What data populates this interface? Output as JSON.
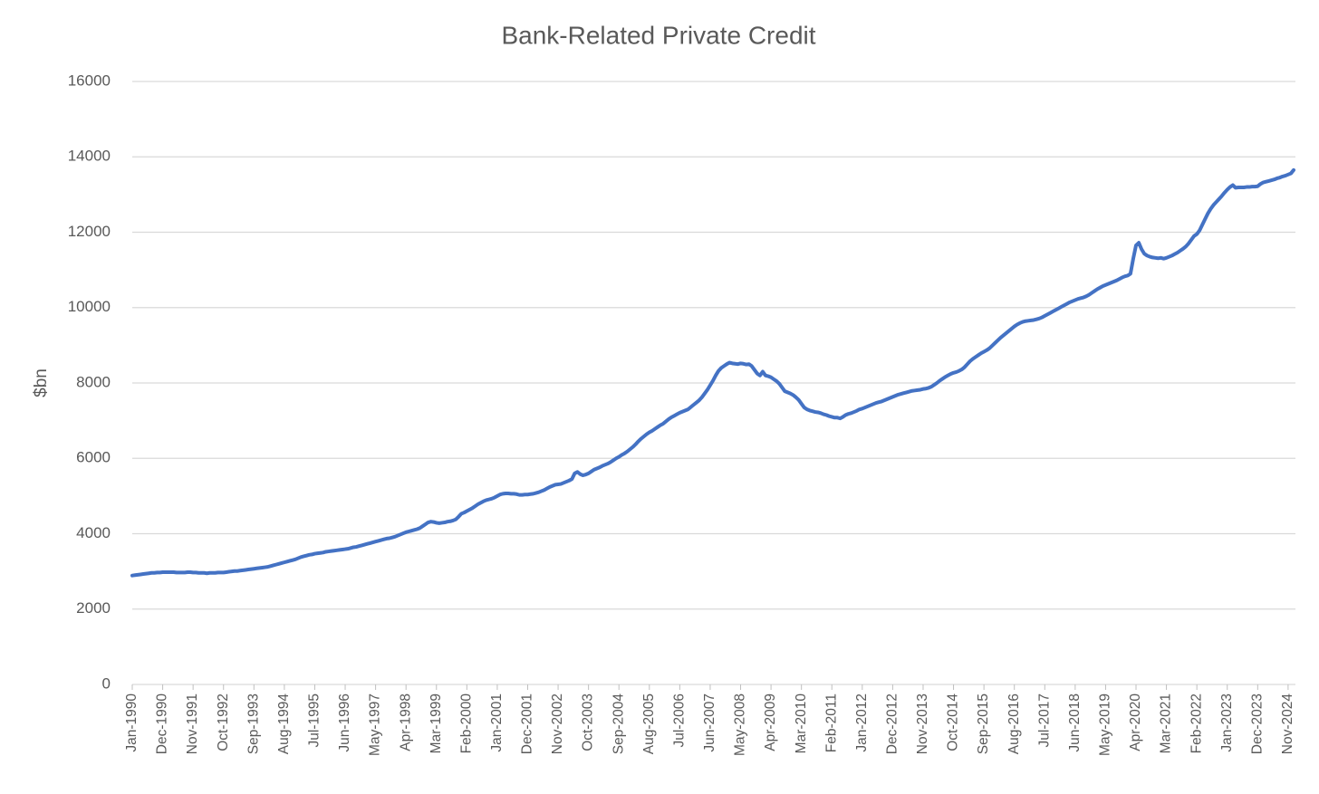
{
  "chart_data": {
    "type": "line",
    "title": "Bank-Related Private Credit",
    "y_label": "$bn",
    "categories": [
      "Jan-1990",
      null,
      null,
      null,
      null,
      null,
      null,
      null,
      null,
      null,
      null,
      "Dec-1990",
      null,
      null,
      null,
      null,
      null,
      null,
      null,
      null,
      null,
      null,
      "Nov-1991",
      null,
      null,
      null,
      null,
      null,
      null,
      null,
      null,
      null,
      null,
      "Oct-1992",
      null,
      null,
      null,
      null,
      null,
      null,
      null,
      null,
      null,
      null,
      "Sep-1993",
      null,
      null,
      null,
      null,
      null,
      null,
      null,
      null,
      null,
      null,
      "Aug-1994",
      null,
      null,
      null,
      null,
      null,
      null,
      null,
      null,
      null,
      null,
      "Jul-1995",
      null,
      null,
      null,
      null,
      null,
      null,
      null,
      null,
      null,
      null,
      "Jun-1996",
      null,
      null,
      null,
      null,
      null,
      null,
      null,
      null,
      null,
      null,
      "May-1997",
      null,
      null,
      null,
      null,
      null,
      null,
      null,
      null,
      null,
      null,
      "Apr-1998",
      null,
      null,
      null,
      null,
      null,
      null,
      null,
      null,
      null,
      null,
      "Mar-1999",
      null,
      null,
      null,
      null,
      null,
      null,
      null,
      null,
      null,
      null,
      "Feb-2000",
      null,
      null,
      null,
      null,
      null,
      null,
      null,
      null,
      null,
      null,
      "Jan-2001",
      null,
      null,
      null,
      null,
      null,
      null,
      null,
      null,
      null,
      null,
      "Dec-2001",
      null,
      null,
      null,
      null,
      null,
      null,
      null,
      null,
      null,
      null,
      "Nov-2002",
      null,
      null,
      null,
      null,
      null,
      null,
      null,
      null,
      null,
      null,
      "Oct-2003",
      null,
      null,
      null,
      null,
      null,
      null,
      null,
      null,
      null,
      null,
      "Sep-2004",
      null,
      null,
      null,
      null,
      null,
      null,
      null,
      null,
      null,
      null,
      "Aug-2005",
      null,
      null,
      null,
      null,
      null,
      null,
      null,
      null,
      null,
      null,
      "Jul-2006",
      null,
      null,
      null,
      null,
      null,
      null,
      null,
      null,
      null,
      null,
      "Jun-2007",
      null,
      null,
      null,
      null,
      null,
      null,
      null,
      null,
      null,
      null,
      "May-2008",
      null,
      null,
      null,
      null,
      null,
      null,
      null,
      null,
      null,
      null,
      "Apr-2009",
      null,
      null,
      null,
      null,
      null,
      null,
      null,
      null,
      null,
      null,
      "Mar-2010",
      null,
      null,
      null,
      null,
      null,
      null,
      null,
      null,
      null,
      null,
      "Feb-2011",
      null,
      null,
      null,
      null,
      null,
      null,
      null,
      null,
      null,
      null,
      "Jan-2012",
      null,
      null,
      null,
      null,
      null,
      null,
      null,
      null,
      null,
      null,
      "Dec-2012",
      null,
      null,
      null,
      null,
      null,
      null,
      null,
      null,
      null,
      null,
      "Nov-2013",
      null,
      null,
      null,
      null,
      null,
      null,
      null,
      null,
      null,
      null,
      "Oct-2014",
      null,
      null,
      null,
      null,
      null,
      null,
      null,
      null,
      null,
      null,
      "Sep-2015",
      null,
      null,
      null,
      null,
      null,
      null,
      null,
      null,
      null,
      null,
      "Aug-2016",
      null,
      null,
      null,
      null,
      null,
      null,
      null,
      null,
      null,
      null,
      "Jul-2017",
      null,
      null,
      null,
      null,
      null,
      null,
      null,
      null,
      null,
      null,
      "Jun-2018",
      null,
      null,
      null,
      null,
      null,
      null,
      null,
      null,
      null,
      null,
      "May-2019",
      null,
      null,
      null,
      null,
      null,
      null,
      null,
      null,
      null,
      null,
      "Apr-2020",
      null,
      null,
      null,
      null,
      null,
      null,
      null,
      null,
      null,
      null,
      "Mar-2021",
      null,
      null,
      null,
      null,
      null,
      null,
      null,
      null,
      null,
      null,
      "Feb-2022",
      null,
      null,
      null,
      null,
      null,
      null,
      null,
      null,
      null,
      null,
      "Jan-2023",
      null,
      null,
      null,
      null,
      null,
      null,
      null,
      null,
      null,
      null,
      "Dec-2023",
      null,
      null,
      null,
      null,
      null,
      null,
      null,
      null,
      null,
      null,
      "Nov-2024",
      null,
      null
    ],
    "series": [
      {
        "name": "Bank-Related Private Credit",
        "color": "#4472c4",
        "values": [
          2890,
          2900,
          2910,
          2920,
          2930,
          2940,
          2950,
          2960,
          2960,
          2970,
          2970,
          2980,
          2980,
          2980,
          2980,
          2980,
          2970,
          2970,
          2970,
          2970,
          2980,
          2980,
          2970,
          2970,
          2960,
          2960,
          2960,
          2950,
          2960,
          2960,
          2960,
          2970,
          2970,
          2970,
          2980,
          2990,
          3000,
          3010,
          3010,
          3020,
          3030,
          3040,
          3050,
          3060,
          3070,
          3080,
          3090,
          3100,
          3110,
          3120,
          3140,
          3160,
          3180,
          3200,
          3220,
          3240,
          3260,
          3280,
          3300,
          3320,
          3350,
          3380,
          3400,
          3420,
          3440,
          3450,
          3470,
          3480,
          3490,
          3500,
          3520,
          3530,
          3540,
          3550,
          3560,
          3570,
          3580,
          3590,
          3600,
          3620,
          3640,
          3650,
          3670,
          3690,
          3710,
          3730,
          3750,
          3770,
          3790,
          3810,
          3830,
          3850,
          3870,
          3880,
          3900,
          3920,
          3950,
          3980,
          4010,
          4040,
          4060,
          4080,
          4100,
          4120,
          4150,
          4200,
          4250,
          4300,
          4320,
          4310,
          4290,
          4280,
          4290,
          4300,
          4320,
          4330,
          4350,
          4380,
          4450,
          4530,
          4560,
          4600,
          4640,
          4680,
          4730,
          4780,
          4820,
          4860,
          4890,
          4910,
          4930,
          4960,
          5000,
          5040,
          5060,
          5070,
          5070,
          5060,
          5060,
          5050,
          5030,
          5030,
          5040,
          5040,
          5050,
          5060,
          5080,
          5100,
          5130,
          5160,
          5200,
          5240,
          5270,
          5300,
          5310,
          5320,
          5350,
          5380,
          5410,
          5450,
          5600,
          5640,
          5580,
          5550,
          5570,
          5600,
          5650,
          5700,
          5730,
          5760,
          5800,
          5830,
          5860,
          5900,
          5950,
          6000,
          6040,
          6090,
          6130,
          6180,
          6240,
          6300,
          6370,
          6450,
          6520,
          6580,
          6640,
          6690,
          6730,
          6780,
          6830,
          6880,
          6920,
          6980,
          7040,
          7090,
          7130,
          7170,
          7210,
          7240,
          7270,
          7300,
          7360,
          7420,
          7480,
          7540,
          7620,
          7720,
          7820,
          7940,
          8060,
          8200,
          8320,
          8400,
          8450,
          8500,
          8540,
          8520,
          8510,
          8500,
          8520,
          8510,
          8490,
          8500,
          8450,
          8350,
          8250,
          8200,
          8300,
          8200,
          8180,
          8150,
          8100,
          8050,
          7980,
          7880,
          7780,
          7750,
          7720,
          7680,
          7620,
          7550,
          7450,
          7350,
          7300,
          7270,
          7250,
          7230,
          7220,
          7200,
          7170,
          7150,
          7120,
          7100,
          7080,
          7080,
          7060,
          7100,
          7150,
          7180,
          7200,
          7230,
          7260,
          7300,
          7320,
          7350,
          7380,
          7410,
          7440,
          7470,
          7490,
          7510,
          7540,
          7570,
          7600,
          7630,
          7660,
          7690,
          7710,
          7730,
          7750,
          7770,
          7790,
          7800,
          7810,
          7820,
          7840,
          7850,
          7870,
          7900,
          7950,
          8000,
          8060,
          8110,
          8160,
          8200,
          8240,
          8270,
          8290,
          8320,
          8360,
          8420,
          8500,
          8580,
          8640,
          8690,
          8740,
          8790,
          8830,
          8870,
          8920,
          8990,
          9060,
          9130,
          9200,
          9260,
          9320,
          9380,
          9440,
          9500,
          9550,
          9590,
          9620,
          9640,
          9650,
          9660,
          9670,
          9690,
          9710,
          9740,
          9780,
          9820,
          9860,
          9900,
          9940,
          9980,
          10020,
          10060,
          10100,
          10140,
          10170,
          10200,
          10230,
          10250,
          10270,
          10300,
          10340,
          10390,
          10440,
          10490,
          10530,
          10570,
          10600,
          10630,
          10660,
          10690,
          10720,
          10760,
          10800,
          10830,
          10850,
          10900,
          11300,
          11650,
          11720,
          11550,
          11430,
          11380,
          11350,
          11330,
          11320,
          11310,
          11320,
          11300,
          11320,
          11350,
          11380,
          11420,
          11460,
          11510,
          11560,
          11620,
          11700,
          11800,
          11900,
          11950,
          12050,
          12200,
          12350,
          12500,
          12620,
          12720,
          12800,
          12880,
          12960,
          13050,
          13130,
          13200,
          13250,
          13180,
          13190,
          13190,
          13190,
          13200,
          13200,
          13210,
          13210,
          13220,
          13280,
          13320,
          13340,
          13360,
          13380,
          13400,
          13430,
          13450,
          13480,
          13500,
          13530,
          13560,
          13650
        ]
      }
    ],
    "ylim": [
      0,
      16000
    ],
    "yticks": [
      0,
      2000,
      4000,
      6000,
      8000,
      10000,
      12000,
      14000,
      16000
    ],
    "grid": true
  }
}
